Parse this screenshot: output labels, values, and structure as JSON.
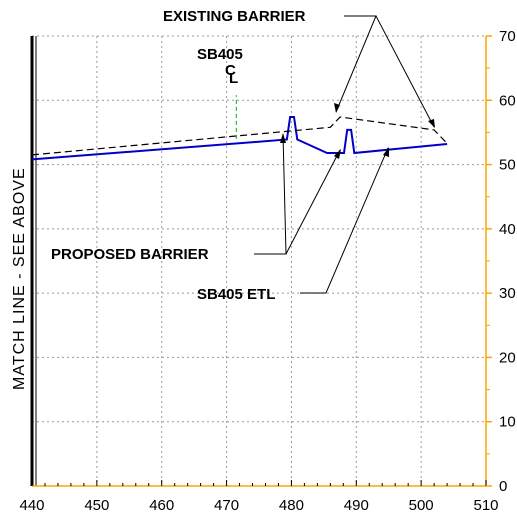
{
  "labels": {
    "existing_barrier": "EXISTING   BARRIER",
    "proposed_barrier": "PROPOSED   BARRIER",
    "etl": "SB405   ETL",
    "centerline_name": "SB405",
    "centerline_c": "C",
    "centerline_l": "L",
    "match_line": "MATCH  LINE  -  SEE  ABOVE"
  },
  "colors": {
    "profile": "#0000c8",
    "axis_right": "#ffa500",
    "grid": "#999999",
    "centerline": "#00b000",
    "existing": "#000000"
  },
  "chart_data": {
    "type": "line",
    "x_ticks": [
      "440",
      "450",
      "460",
      "470",
      "480",
      "490",
      "500",
      "510"
    ],
    "y_ticks": [
      "0",
      "10",
      "20",
      "30",
      "40",
      "50",
      "60",
      "70"
    ],
    "xlim": [
      440,
      510
    ],
    "ylim": [
      0,
      70
    ],
    "grid": true,
    "series": [
      {
        "key": "proposed",
        "points": [
          [
            440,
            50.8
          ],
          [
            479.3,
            53.9
          ],
          [
            479.8,
            57.4
          ],
          [
            480.4,
            57.4
          ],
          [
            480.9,
            53.9
          ],
          [
            485.5,
            51.8
          ],
          [
            488.1,
            51.8
          ],
          [
            488.6,
            55.4
          ],
          [
            489.2,
            55.4
          ],
          [
            489.7,
            51.8
          ],
          [
            504,
            53.2
          ]
        ]
      },
      {
        "key": "existing",
        "dashed": true,
        "points": [
          [
            440,
            51.5
          ],
          [
            486,
            55.8
          ],
          [
            487.5,
            57.4
          ],
          [
            502,
            55.4
          ],
          [
            504,
            53.3
          ]
        ]
      },
      {
        "key": "centerline",
        "dashed": true,
        "points": [
          [
            471.5,
            54
          ],
          [
            471.5,
            60.8
          ]
        ]
      }
    ]
  }
}
